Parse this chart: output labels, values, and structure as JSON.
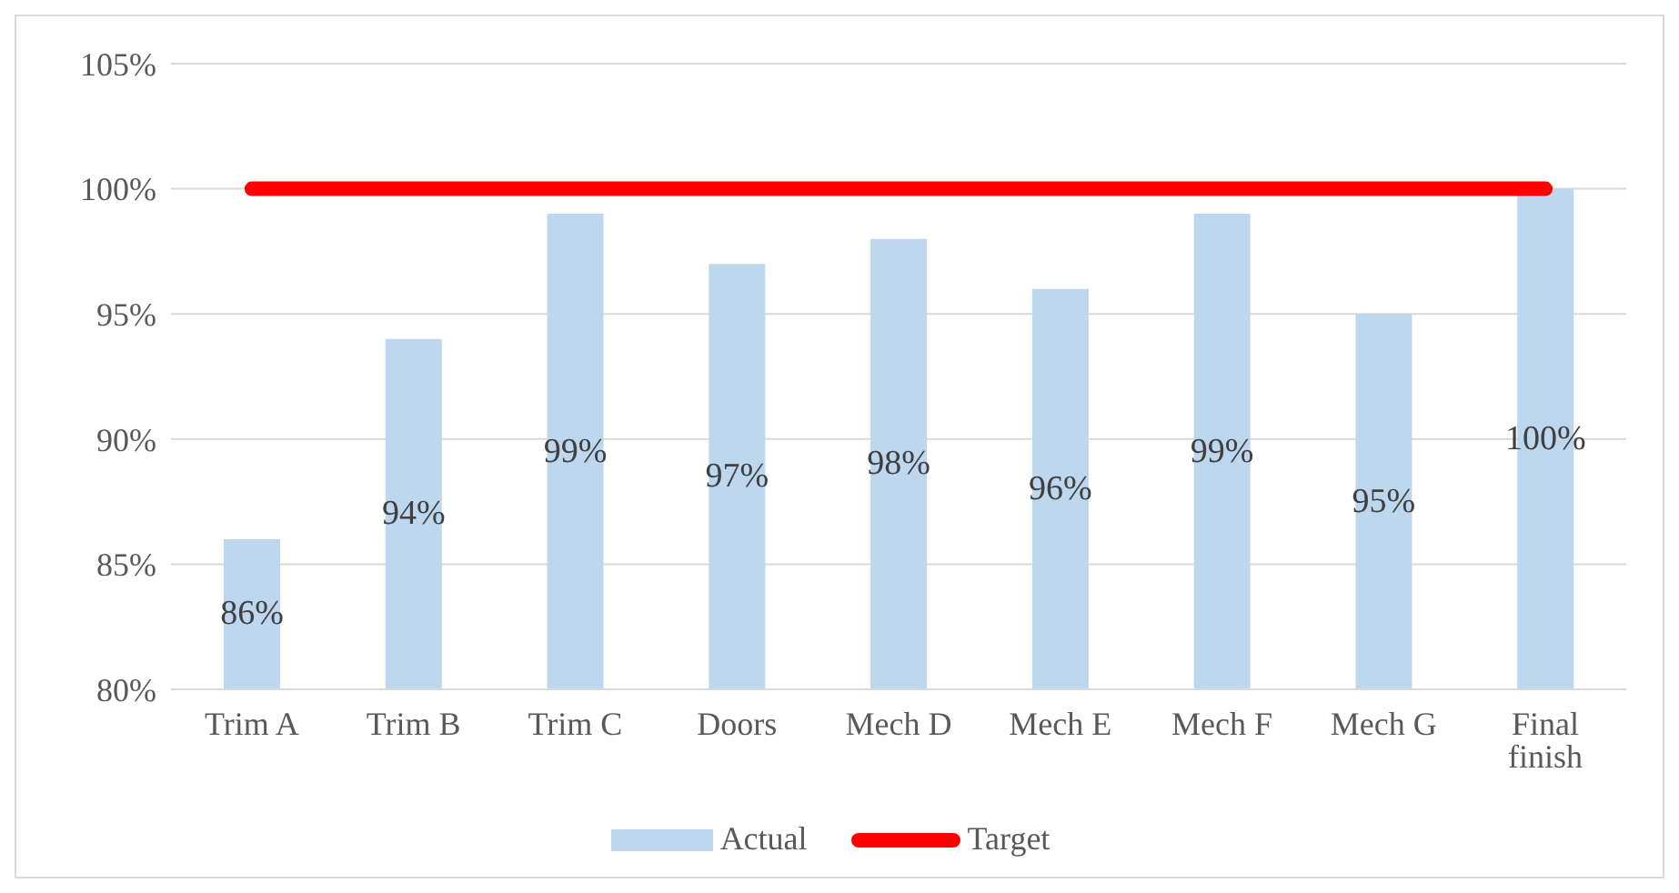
{
  "chart_data": {
    "type": "bar",
    "categories": [
      "Trim A",
      "Trim B",
      "Trim C",
      "Doors",
      "Mech D",
      "Mech E",
      "Mech F",
      "Mech G",
      "Final finish"
    ],
    "series": [
      {
        "name": "Actual",
        "color": "#bdd7ee",
        "values": [
          86,
          94,
          99,
          97,
          98,
          96,
          99,
          95,
          100
        ],
        "value_labels": [
          "86%",
          "94%",
          "99%",
          "97%",
          "98%",
          "96%",
          "99%",
          "95%",
          "100%"
        ]
      },
      {
        "name": "Target",
        "type": "line",
        "color": "#ff0000",
        "values": [
          100,
          100,
          100,
          100,
          100,
          100,
          100,
          100,
          100
        ]
      }
    ],
    "ylim": [
      80,
      105
    ],
    "yticks": [
      {
        "value": 80,
        "label": "80%"
      },
      {
        "value": 85,
        "label": "85%"
      },
      {
        "value": 90,
        "label": "90%"
      },
      {
        "value": 95,
        "label": "95%"
      },
      {
        "value": 100,
        "label": "100%"
      },
      {
        "value": 105,
        "label": "105%"
      }
    ],
    "grid": "y",
    "legend": "bottom",
    "marker": "none"
  }
}
